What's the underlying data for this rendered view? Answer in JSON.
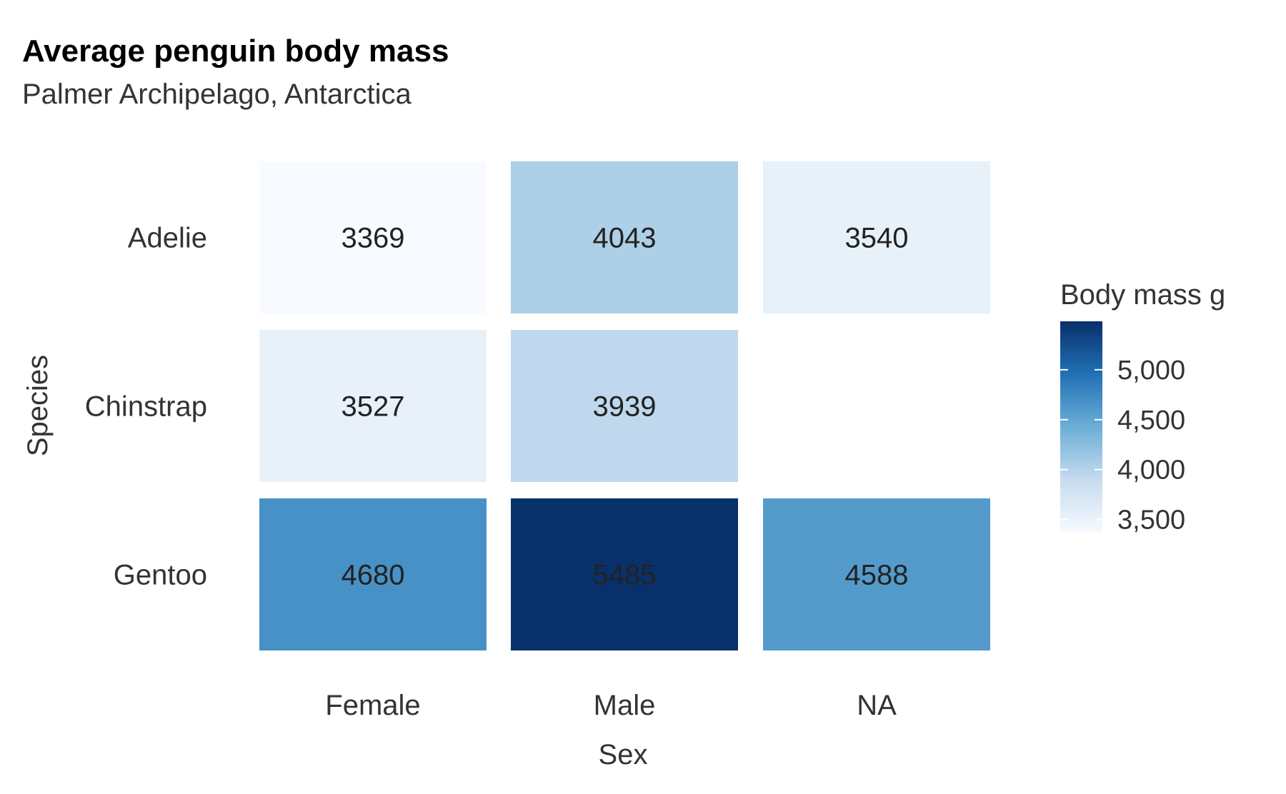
{
  "chart_data": {
    "type": "heatmap",
    "title": "Average penguin body mass",
    "subtitle": "Palmer Archipelago, Antarctica",
    "xlabel": "Sex",
    "ylabel": "Species",
    "x_categories": [
      "Female",
      "Male",
      "NA"
    ],
    "y_categories": [
      "Adelie",
      "Chinstrap",
      "Gentoo"
    ],
    "values": [
      [
        3369,
        4043,
        3540
      ],
      [
        3527,
        3939,
        null
      ],
      [
        4680,
        5485,
        4588
      ]
    ],
    "legend": {
      "title": "Body mass g",
      "placement": "right",
      "range": [
        3369,
        5485
      ],
      "ticks": [
        5000,
        4500,
        4000,
        3500
      ],
      "tick_labels": [
        "5,000",
        "4,500",
        "4,000",
        "3,500"
      ],
      "colors": [
        "#f7fbff",
        "#c6dbef",
        "#6baed6",
        "#2171b5",
        "#08306b"
      ]
    },
    "grid": false
  }
}
